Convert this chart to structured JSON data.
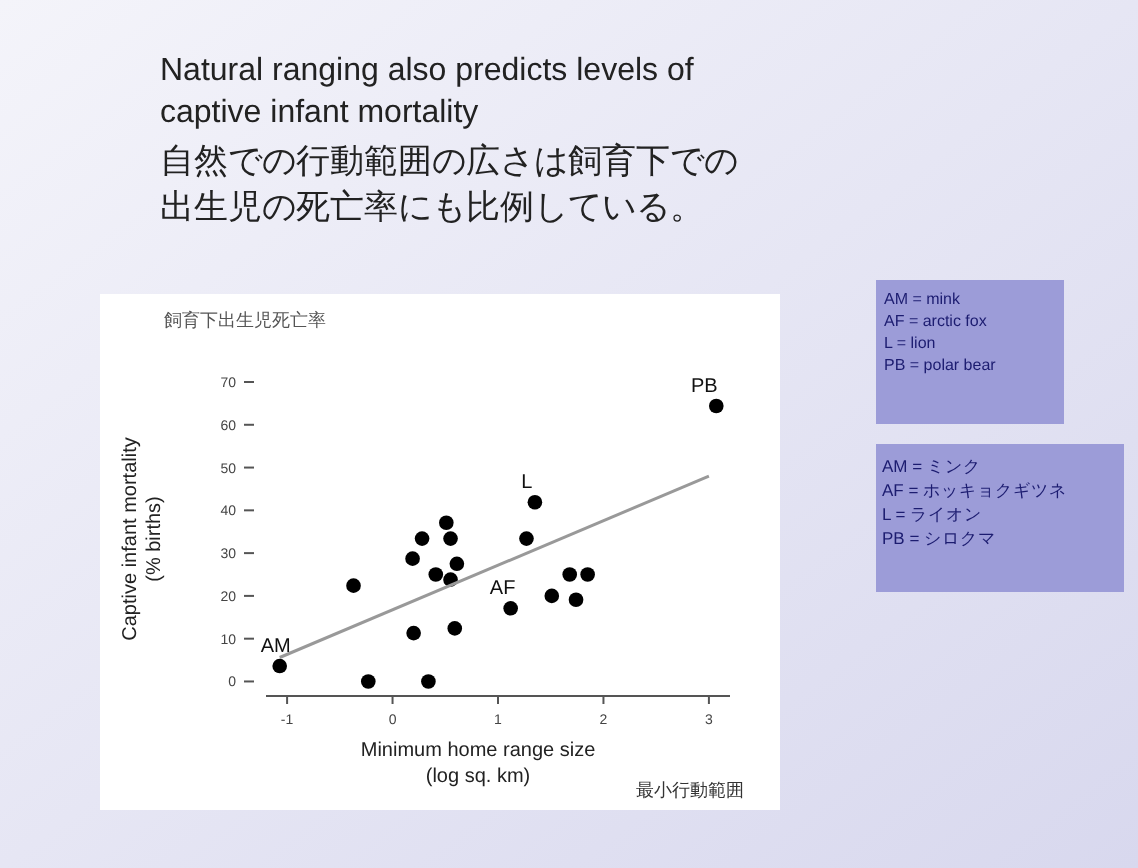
{
  "chart_data": {
    "type": "scatter",
    "title": "Natural ranging also predicts levels of\ncaptive infant mortality",
    "subtitle": "自然での行動範囲の広さは飼育下での出生児の死亡率にも比例している。",
    "xlabel": "Minimum home range size\n(log sq. km)",
    "ylabel": "Captive infant mortality\n(% births)",
    "xlim": [
      -1.2,
      3.2
    ],
    "xticks": [
      -1,
      0,
      1,
      2,
      3
    ],
    "ylim": [
      -3.4,
      70
    ],
    "yticks": [
      0,
      10,
      20,
      30,
      40,
      50,
      60,
      70
    ],
    "grid": false,
    "series": [
      {
        "marker": "circle",
        "color": "#000000",
        "x": [
          -1.07,
          -0.37,
          -0.23,
          0.19,
          0.2,
          0.28,
          0.34,
          0.41,
          0.51,
          0.55,
          0.55,
          0.61,
          0.59,
          1.12,
          1.27,
          1.35,
          1.51,
          1.68,
          1.74,
          1.85,
          3.07
        ],
        "values": [
          3.6,
          22.4,
          0,
          28.7,
          11.3,
          33.4,
          0,
          25,
          37.1,
          33.4,
          23.8,
          27.5,
          12.4,
          17.1,
          33.4,
          41.9,
          20,
          25,
          19.1,
          25,
          64.4
        ]
      },
      {
        "type": "line",
        "marker": "none",
        "color": "#999999",
        "x": [
          -1.07,
          3.0
        ],
        "values": [
          5.6,
          48
        ]
      }
    ],
    "annotations": [
      "飼育下出生児死亡率",
      "最小行動範囲",
      "AM = mink\nAF = arctic fox\nL = lion\nPB = polar bear",
      "AM = ミンク\nAF = ホッキョクギツネ\nL = ライオン\nPB = シロクマ",
      {
        "text": "AM",
        "x": -1.07,
        "y": 3.6
      },
      {
        "text": "AF",
        "x": 1.12,
        "y": 17.1
      },
      {
        "text": "L",
        "x": 1.35,
        "y": 41.9
      },
      {
        "text": "PB",
        "x": 3.07,
        "y": 64.4
      }
    ]
  }
}
